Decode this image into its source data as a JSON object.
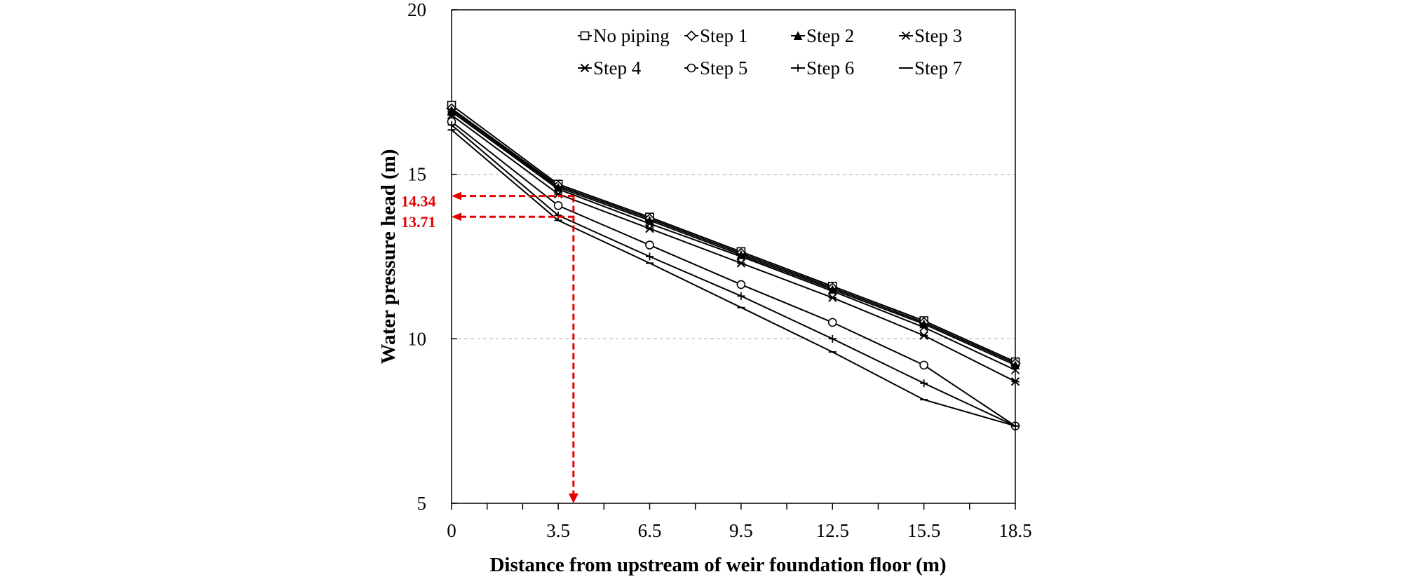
{
  "chart_data": {
    "type": "line",
    "xlabel": "Distance from upstream of weir foundation floor (m)",
    "ylabel": "Water pressure head (m)",
    "x": [
      0,
      3.5,
      6.5,
      9.5,
      12.5,
      15.5,
      18.5
    ],
    "x_tick_labels": [
      "0",
      "3.5",
      "6.5",
      "9.5",
      "12.5",
      "15.5",
      "18.5"
    ],
    "y_ticks": [
      5,
      10,
      15,
      20
    ],
    "y_tick_labels": [
      "5",
      "10",
      "15",
      "20"
    ],
    "xlim": [
      0,
      18.5
    ],
    "ylim": [
      5,
      20
    ],
    "grid": "horizontal dashed at 10 and 15",
    "legend_position": "top-right inside plot",
    "series": [
      {
        "name": "No piping",
        "marker": "square-open",
        "values": [
          17.1,
          14.7,
          13.7,
          12.65,
          11.6,
          10.55,
          9.3
        ]
      },
      {
        "name": "Step 1",
        "marker": "diamond-open",
        "values": [
          17.0,
          14.65,
          13.65,
          12.6,
          11.55,
          10.5,
          9.25
        ]
      },
      {
        "name": "Step 2",
        "marker": "triangle-filled",
        "values": [
          16.95,
          14.6,
          13.6,
          12.55,
          11.5,
          10.45,
          9.2
        ]
      },
      {
        "name": "Step 3",
        "marker": "x",
        "values": [
          16.9,
          14.55,
          13.5,
          12.5,
          11.45,
          10.35,
          9.05
        ]
      },
      {
        "name": "Step 4",
        "marker": "asterisk",
        "values": [
          16.8,
          14.4,
          13.35,
          12.3,
          11.25,
          10.1,
          8.7
        ]
      },
      {
        "name": "Step 5",
        "marker": "circle-open",
        "values": [
          16.6,
          14.05,
          12.85,
          11.65,
          10.5,
          9.2,
          7.35
        ]
      },
      {
        "name": "Step 6",
        "marker": "plus",
        "values": [
          16.5,
          13.75,
          12.5,
          11.3,
          10.0,
          8.65,
          7.35
        ]
      },
      {
        "name": "Step 7",
        "marker": "dash",
        "values": [
          16.35,
          13.6,
          12.3,
          10.95,
          9.6,
          8.15,
          7.35
        ]
      }
    ],
    "annotations": [
      {
        "label": "14.34",
        "value": 14.34
      },
      {
        "label": "13.71",
        "value": 13.71
      }
    ],
    "annotation_x": 4.0,
    "colors": {
      "series": "#000000",
      "annotation": "#e60000",
      "grid": "#b4b4b4"
    }
  }
}
